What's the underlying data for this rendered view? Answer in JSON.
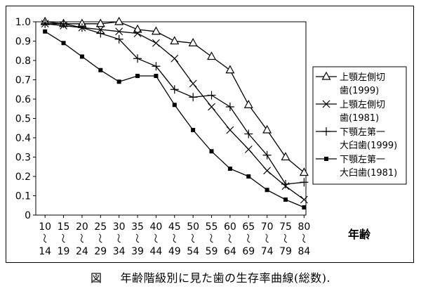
{
  "chart_data": {
    "type": "line",
    "x_labels_top": [
      "10",
      "15",
      "20",
      "25",
      "30",
      "35",
      "40",
      "45",
      "50",
      "55",
      "60",
      "65",
      "70",
      "75",
      "80"
    ],
    "x_labels_bottom": [
      "14",
      "19",
      "24",
      "29",
      "34",
      "39",
      "44",
      "49",
      "54",
      "59",
      "64",
      "69",
      "74",
      "79",
      "84"
    ],
    "xlabel": "年齢",
    "ylabel": "",
    "ylim": [
      0,
      1.0
    ],
    "yticks": [
      "0",
      "0.1",
      "0.2",
      "0.3",
      "0.4",
      "0.5",
      "0.6",
      "0.7",
      "0.8",
      "0.9",
      "1.0"
    ],
    "grid": false,
    "legend_position": "right",
    "series": [
      {
        "name_line1": "上顎左側切",
        "name_line2": "歯(1999)",
        "marker": "triangle",
        "values": [
          1.0,
          0.99,
          0.99,
          0.99,
          1.0,
          0.96,
          0.95,
          0.9,
          0.89,
          0.82,
          0.75,
          0.57,
          0.44,
          0.3,
          0.22
        ]
      },
      {
        "name_line1": "上顎左側切",
        "name_line2": "歯(1981)",
        "marker": "x",
        "values": [
          0.99,
          0.98,
          0.97,
          0.96,
          0.95,
          0.94,
          0.89,
          0.81,
          0.68,
          0.56,
          0.44,
          0.34,
          0.23,
          0.15,
          0.08
        ]
      },
      {
        "name_line1": "下顎左第一",
        "name_line2": "大臼歯(1999)",
        "marker": "plus",
        "values": [
          0.99,
          0.99,
          0.97,
          0.94,
          0.91,
          0.81,
          0.77,
          0.65,
          0.61,
          0.62,
          0.56,
          0.42,
          0.31,
          0.16,
          0.17
        ]
      },
      {
        "name_line1": "下顎左第一",
        "name_line2": "大臼歯(1981)",
        "marker": "square",
        "values": [
          0.95,
          0.89,
          0.82,
          0.75,
          0.69,
          0.72,
          0.72,
          0.57,
          0.44,
          0.33,
          0.24,
          0.2,
          0.13,
          0.08,
          0.04
        ]
      }
    ]
  },
  "caption": {
    "label": "図",
    "text": "年齢階級別に見た歯の生存率曲線(総数)."
  }
}
